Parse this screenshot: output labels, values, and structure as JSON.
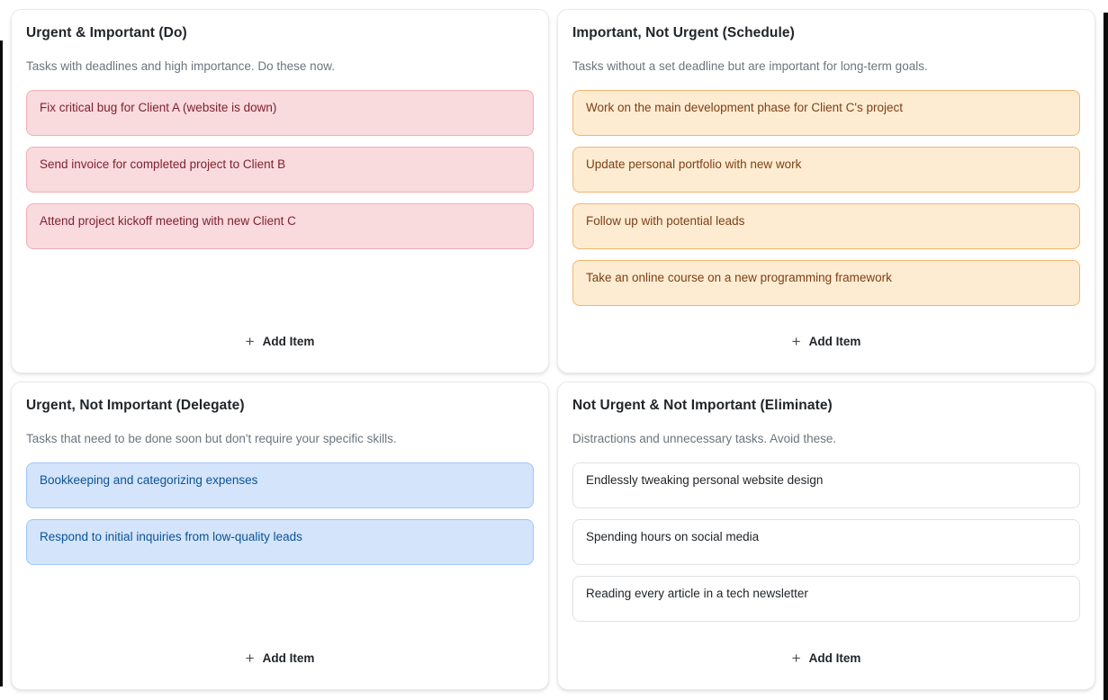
{
  "ui": {
    "add_item_label": "Add Item",
    "plus_icon": "+"
  },
  "colors": {
    "page_background": "#ffffff",
    "card_border": "#e8eaee",
    "title_text": "#212529",
    "description_text": "#6c757d"
  },
  "quadrants": [
    {
      "id": "urgent-important-do",
      "title": "Urgent & Important (Do)",
      "description": "Tasks with deadlines and high importance. Do these now.",
      "theme": {
        "item_bg": "#f9dadd",
        "item_border": "#f1afb6",
        "item_text": "#7e2230"
      },
      "items": [
        "Fix critical bug for Client A (website is down)",
        "Send invoice for completed project to Client B",
        "Attend project kickoff meeting with new Client C"
      ]
    },
    {
      "id": "important-not-urgent-schedule",
      "title": "Important, Not Urgent (Schedule)",
      "description": "Tasks without a set deadline but are important for long-term goals.",
      "theme": {
        "item_bg": "#fdecd2",
        "item_border": "#f3b570",
        "item_text": "#7d4018"
      },
      "items": [
        "Work on the main development phase for Client C's project",
        "Update personal portfolio with new work",
        "Follow up with potential leads",
        "Take an online course on a new programming framework"
      ]
    },
    {
      "id": "urgent-not-important-delegate",
      "title": "Urgent, Not Important (Delegate)",
      "description": "Tasks that need to be done soon but don't require your specific skills.",
      "theme": {
        "item_bg": "#d4e4fb",
        "item_border": "#9ec5fe",
        "item_text": "#0b5394"
      },
      "items": [
        "Bookkeeping and categorizing expenses",
        "Respond to initial inquiries from low-quality leads"
      ]
    },
    {
      "id": "not-urgent-not-important-eliminate",
      "title": "Not Urgent & Not Important (Eliminate)",
      "description": "Distractions and unnecessary tasks. Avoid these.",
      "theme": {
        "item_bg": "#ffffff",
        "item_border": "#dee2e6",
        "item_text": "#212529"
      },
      "items": [
        "Endlessly tweaking personal website design",
        "Spending hours on social media",
        "Reading every article in a tech newsletter"
      ]
    }
  ]
}
